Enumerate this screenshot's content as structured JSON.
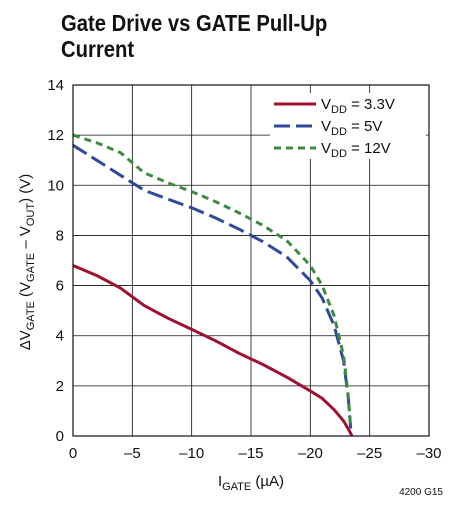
{
  "title_lines": [
    "Gate Drive vs GATE Pull-Up",
    "Current"
  ],
  "figure_id": "4200 G15",
  "chart_data": {
    "type": "line",
    "xlabel": {
      "main": "I",
      "sub": "GATE",
      "unit": " (µA)"
    },
    "ylabel": {
      "delta": "ΔV",
      "sub1": "GATE",
      "mid": " (V",
      "sub2": "GATE",
      "minus": " – V",
      "sub3": "OUT",
      "end": ") (V)"
    },
    "xlim": [
      0,
      -30
    ],
    "ylim": [
      0,
      14
    ],
    "x_ticks": [
      0,
      -5,
      -10,
      -15,
      -20,
      -25,
      -30
    ],
    "x_tick_labels": [
      "0",
      "–5",
      "–10",
      "–15",
      "–20",
      "–25",
      "–30"
    ],
    "y_ticks": [
      0,
      2,
      4,
      6,
      8,
      10,
      12,
      14
    ],
    "y_tick_labels": [
      "0",
      "2",
      "4",
      "6",
      "8",
      "10",
      "12",
      "14"
    ],
    "grid": true,
    "legend_position": "top-right",
    "series": [
      {
        "name": {
          "main": "V",
          "sub": "DD",
          "rest": " = 3.3V"
        },
        "color": "#9e1230",
        "style": "solid",
        "points": [
          [
            0,
            6.8
          ],
          [
            -2,
            6.4
          ],
          [
            -4,
            5.9
          ],
          [
            -6,
            5.2
          ],
          [
            -8,
            4.7
          ],
          [
            -10,
            4.25
          ],
          [
            -12,
            3.8
          ],
          [
            -14,
            3.3
          ],
          [
            -16,
            2.85
          ],
          [
            -18,
            2.35
          ],
          [
            -20,
            1.8
          ],
          [
            -21,
            1.5
          ],
          [
            -22,
            1.05
          ],
          [
            -22.8,
            0.6
          ],
          [
            -23.3,
            0.2
          ],
          [
            -23.5,
            0
          ]
        ]
      },
      {
        "name": {
          "main": "V",
          "sub": "DD",
          "rest": " = 5V"
        },
        "color": "#2e4a9a",
        "style": "longdash",
        "points": [
          [
            0,
            11.6
          ],
          [
            -2,
            11.0
          ],
          [
            -4,
            10.4
          ],
          [
            -6,
            9.8
          ],
          [
            -8,
            9.45
          ],
          [
            -10,
            9.1
          ],
          [
            -12,
            8.7
          ],
          [
            -14,
            8.25
          ],
          [
            -16,
            7.75
          ],
          [
            -18,
            7.15
          ],
          [
            -20,
            6.2
          ],
          [
            -21,
            5.5
          ],
          [
            -22,
            4.4
          ],
          [
            -22.8,
            3.0
          ],
          [
            -23.2,
            1.5
          ],
          [
            -23.4,
            0.3
          ]
        ]
      },
      {
        "name": {
          "main": "V",
          "sub": "DD",
          "rest": " = 12V"
        },
        "color": "#3f8a3f",
        "style": "dash",
        "points": [
          [
            0,
            12.0
          ],
          [
            -2,
            11.7
          ],
          [
            -4,
            11.3
          ],
          [
            -6,
            10.5
          ],
          [
            -8,
            10.1
          ],
          [
            -10,
            9.75
          ],
          [
            -12,
            9.35
          ],
          [
            -14,
            8.9
          ],
          [
            -16,
            8.4
          ],
          [
            -18,
            7.8
          ],
          [
            -20,
            6.8
          ],
          [
            -21,
            6.0
          ],
          [
            -22,
            4.8
          ],
          [
            -22.8,
            3.2
          ],
          [
            -23.2,
            1.6
          ],
          [
            -23.4,
            0.3
          ]
        ]
      }
    ]
  }
}
